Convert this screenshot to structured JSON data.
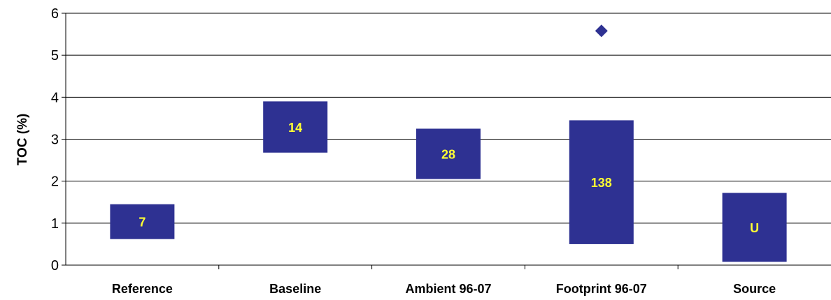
{
  "chart_data": {
    "type": "bar",
    "subtype": "floating-range",
    "title": "",
    "xlabel": "",
    "ylabel": "TOC (%)",
    "ylim": [
      0,
      6
    ],
    "yticks": [
      "0",
      "1",
      "2",
      "3",
      "4",
      "5",
      "6"
    ],
    "grid": true,
    "legend": "none",
    "categories": [
      "Reference",
      "Baseline",
      "Ambient 96-07",
      "Footprint 96-07",
      "Source"
    ],
    "ranges": [
      {
        "category": "Reference",
        "low": 0.62,
        "high": 1.45,
        "label": "7"
      },
      {
        "category": "Baseline",
        "low": 2.68,
        "high": 3.9,
        "label": "14"
      },
      {
        "category": "Ambient 96-07",
        "low": 2.05,
        "high": 3.25,
        "label": "28"
      },
      {
        "category": "Footprint 96-07",
        "low": 0.5,
        "high": 3.45,
        "label": "138"
      },
      {
        "category": "Source",
        "low": 0.08,
        "high": 1.72,
        "label": "U"
      }
    ],
    "outliers": [
      {
        "category": "Footprint 96-07",
        "value": 5.58
      }
    ],
    "colors": {
      "bar": "#2e3192",
      "bar_label": "#ffff33",
      "marker": "#2e3192",
      "grid": "#000000",
      "axis": "#000000"
    }
  }
}
